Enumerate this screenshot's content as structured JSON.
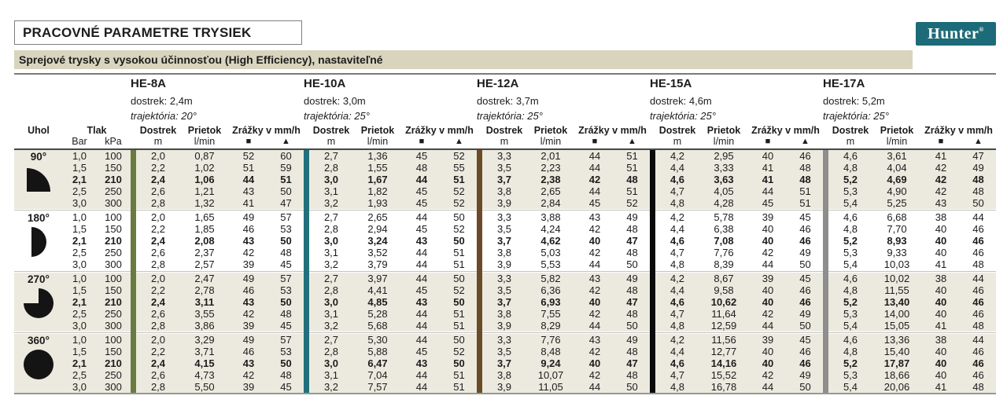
{
  "page": {
    "title": "PRACOVNÉ PARAMETRE TRYSIEK",
    "subtitle": "Sprejové trysky s vysokou účinnosťou (High Efficiency), nastaviteľné",
    "brand": "Hunter",
    "brand_mark": "®"
  },
  "colors": {
    "logo_bg": "#1D6B78",
    "subtitle_bg": "#D8D4BE",
    "band_shaded_bg": "#ECEADF",
    "nozzle_bars": [
      "#6B7A40",
      "#23707D",
      "#6B4B27",
      "#0A0A0A",
      "#8E8E8E"
    ]
  },
  "table": {
    "col_uhol": "Uhol",
    "col_tlak": "Tlak",
    "unit_bar": "Bar",
    "unit_kpa": "kPa",
    "col_dostrek": "Dostrek",
    "col_prietok": "Prietok",
    "col_zrazky": "Zrážky v mm/h",
    "unit_m": "m",
    "unit_lmin": "l/min",
    "sym_square": "■",
    "sym_triangle": "▲",
    "nozzles": [
      {
        "name": "HE-8A",
        "dostrek": "dostrek: 2,4m",
        "trajektoria": "trajektória: 20°"
      },
      {
        "name": "HE-10A",
        "dostrek": "dostrek: 3,0m",
        "trajektoria": "trajektória: 25°"
      },
      {
        "name": "HE-12A",
        "dostrek": "dostrek: 3,7m",
        "trajektoria": "trajektória: 25°"
      },
      {
        "name": "HE-15A",
        "dostrek": "dostrek: 4,6m",
        "trajektoria": "trajektória: 25°"
      },
      {
        "name": "HE-17A",
        "dostrek": "dostrek: 5,2m",
        "trajektoria": "trajektória: 25°"
      }
    ],
    "pressures": [
      [
        "1,0",
        "100"
      ],
      [
        "1,5",
        "150"
      ],
      [
        "2,1",
        "210"
      ],
      [
        "2,5",
        "250"
      ],
      [
        "3,0",
        "300"
      ]
    ],
    "bold_row_index": 2,
    "groups": [
      {
        "angle": "90°",
        "arc": "quarter",
        "shaded": true,
        "rows": [
          [
            [
              "2,0",
              "0,87",
              "52",
              "60"
            ],
            [
              "2,7",
              "1,36",
              "45",
              "52"
            ],
            [
              "3,3",
              "2,01",
              "44",
              "51"
            ],
            [
              "4,2",
              "2,95",
              "40",
              "46"
            ],
            [
              "4,6",
              "3,61",
              "41",
              "47"
            ]
          ],
          [
            [
              "2,2",
              "1,02",
              "51",
              "59"
            ],
            [
              "2,8",
              "1,55",
              "48",
              "55"
            ],
            [
              "3,5",
              "2,23",
              "44",
              "51"
            ],
            [
              "4,4",
              "3,33",
              "41",
              "48"
            ],
            [
              "4,8",
              "4,04",
              "42",
              "49"
            ]
          ],
          [
            [
              "2,4",
              "1,06",
              "44",
              "51"
            ],
            [
              "3,0",
              "1,67",
              "44",
              "51"
            ],
            [
              "3,7",
              "2,38",
              "42",
              "48"
            ],
            [
              "4,6",
              "3,63",
              "41",
              "48"
            ],
            [
              "5,2",
              "4,69",
              "42",
              "48"
            ]
          ],
          [
            [
              "2,6",
              "1,21",
              "43",
              "50"
            ],
            [
              "3,1",
              "1,82",
              "45",
              "52"
            ],
            [
              "3,8",
              "2,65",
              "44",
              "51"
            ],
            [
              "4,7",
              "4,05",
              "44",
              "51"
            ],
            [
              "5,3",
              "4,90",
              "42",
              "48"
            ]
          ],
          [
            [
              "2,8",
              "1,32",
              "41",
              "47"
            ],
            [
              "3,2",
              "1,93",
              "45",
              "52"
            ],
            [
              "3,9",
              "2,84",
              "45",
              "52"
            ],
            [
              "4,8",
              "4,28",
              "45",
              "51"
            ],
            [
              "5,4",
              "5,25",
              "43",
              "50"
            ]
          ]
        ]
      },
      {
        "angle": "180°",
        "arc": "half",
        "shaded": false,
        "rows": [
          [
            [
              "2,0",
              "1,65",
              "49",
              "57"
            ],
            [
              "2,7",
              "2,65",
              "44",
              "50"
            ],
            [
              "3,3",
              "3,88",
              "43",
              "49"
            ],
            [
              "4,2",
              "5,78",
              "39",
              "45"
            ],
            [
              "4,6",
              "6,68",
              "38",
              "44"
            ]
          ],
          [
            [
              "2,2",
              "1,85",
              "46",
              "53"
            ],
            [
              "2,8",
              "2,94",
              "45",
              "52"
            ],
            [
              "3,5",
              "4,24",
              "42",
              "48"
            ],
            [
              "4,4",
              "6,38",
              "40",
              "46"
            ],
            [
              "4,8",
              "7,70",
              "40",
              "46"
            ]
          ],
          [
            [
              "2,4",
              "2,08",
              "43",
              "50"
            ],
            [
              "3,0",
              "3,24",
              "43",
              "50"
            ],
            [
              "3,7",
              "4,62",
              "40",
              "47"
            ],
            [
              "4,6",
              "7,08",
              "40",
              "46"
            ],
            [
              "5,2",
              "8,93",
              "40",
              "46"
            ]
          ],
          [
            [
              "2,6",
              "2,37",
              "42",
              "48"
            ],
            [
              "3,1",
              "3,52",
              "44",
              "51"
            ],
            [
              "3,8",
              "5,03",
              "42",
              "48"
            ],
            [
              "4,7",
              "7,76",
              "42",
              "49"
            ],
            [
              "5,3",
              "9,33",
              "40",
              "46"
            ]
          ],
          [
            [
              "2,8",
              "2,57",
              "39",
              "45"
            ],
            [
              "3,2",
              "3,79",
              "44",
              "51"
            ],
            [
              "3,9",
              "5,53",
              "44",
              "50"
            ],
            [
              "4,8",
              "8,39",
              "44",
              "50"
            ],
            [
              "5,4",
              "10,03",
              "41",
              "48"
            ]
          ]
        ]
      },
      {
        "angle": "270°",
        "arc": "threequarter",
        "shaded": true,
        "rows": [
          [
            [
              "2,0",
              "2,47",
              "49",
              "57"
            ],
            [
              "2,7",
              "3,97",
              "44",
              "50"
            ],
            [
              "3,3",
              "5,82",
              "43",
              "49"
            ],
            [
              "4,2",
              "8,67",
              "39",
              "45"
            ],
            [
              "4,6",
              "10,02",
              "38",
              "44"
            ]
          ],
          [
            [
              "2,2",
              "2,78",
              "46",
              "53"
            ],
            [
              "2,8",
              "4,41",
              "45",
              "52"
            ],
            [
              "3,5",
              "6,36",
              "42",
              "48"
            ],
            [
              "4,4",
              "9,58",
              "40",
              "46"
            ],
            [
              "4,8",
              "11,55",
              "40",
              "46"
            ]
          ],
          [
            [
              "2,4",
              "3,11",
              "43",
              "50"
            ],
            [
              "3,0",
              "4,85",
              "43",
              "50"
            ],
            [
              "3,7",
              "6,93",
              "40",
              "47"
            ],
            [
              "4,6",
              "10,62",
              "40",
              "46"
            ],
            [
              "5,2",
              "13,40",
              "40",
              "46"
            ]
          ],
          [
            [
              "2,6",
              "3,55",
              "42",
              "48"
            ],
            [
              "3,1",
              "5,28",
              "44",
              "51"
            ],
            [
              "3,8",
              "7,55",
              "42",
              "48"
            ],
            [
              "4,7",
              "11,64",
              "42",
              "49"
            ],
            [
              "5,3",
              "14,00",
              "40",
              "46"
            ]
          ],
          [
            [
              "2,8",
              "3,86",
              "39",
              "45"
            ],
            [
              "3,2",
              "5,68",
              "44",
              "51"
            ],
            [
              "3,9",
              "8,29",
              "44",
              "50"
            ],
            [
              "4,8",
              "12,59",
              "44",
              "50"
            ],
            [
              "5,4",
              "15,05",
              "41",
              "48"
            ]
          ]
        ]
      },
      {
        "angle": "360°",
        "arc": "full",
        "shaded": true,
        "rows": [
          [
            [
              "2,0",
              "3,29",
              "49",
              "57"
            ],
            [
              "2,7",
              "5,30",
              "44",
              "50"
            ],
            [
              "3,3",
              "7,76",
              "43",
              "49"
            ],
            [
              "4,2",
              "11,56",
              "39",
              "45"
            ],
            [
              "4,6",
              "13,36",
              "38",
              "44"
            ]
          ],
          [
            [
              "2,2",
              "3,71",
              "46",
              "53"
            ],
            [
              "2,8",
              "5,88",
              "45",
              "52"
            ],
            [
              "3,5",
              "8,48",
              "42",
              "48"
            ],
            [
              "4,4",
              "12,77",
              "40",
              "46"
            ],
            [
              "4,8",
              "15,40",
              "40",
              "46"
            ]
          ],
          [
            [
              "2,4",
              "4,15",
              "43",
              "50"
            ],
            [
              "3,0",
              "6,47",
              "43",
              "50"
            ],
            [
              "3,7",
              "9,24",
              "40",
              "47"
            ],
            [
              "4,6",
              "14,16",
              "40",
              "46"
            ],
            [
              "5,2",
              "17,87",
              "40",
              "46"
            ]
          ],
          [
            [
              "2,6",
              "4,73",
              "42",
              "48"
            ],
            [
              "3,1",
              "7,04",
              "44",
              "51"
            ],
            [
              "3,8",
              "10,07",
              "42",
              "48"
            ],
            [
              "4,7",
              "15,52",
              "42",
              "49"
            ],
            [
              "5,3",
              "18,66",
              "40",
              "46"
            ]
          ],
          [
            [
              "2,8",
              "5,50",
              "39",
              "45"
            ],
            [
              "3,2",
              "7,57",
              "44",
              "51"
            ],
            [
              "3,9",
              "11,05",
              "44",
              "50"
            ],
            [
              "4,8",
              "16,78",
              "44",
              "50"
            ],
            [
              "5,4",
              "20,06",
              "41",
              "48"
            ]
          ]
        ]
      }
    ]
  }
}
